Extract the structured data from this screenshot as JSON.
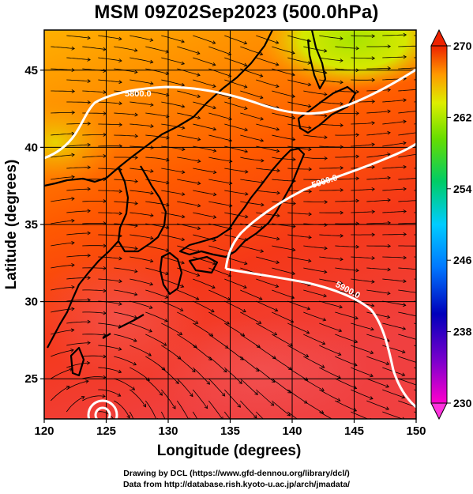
{
  "title": "MSM 09Z02Sep2023 (500.0hPa)",
  "xlabel": "Longitude (degrees)",
  "ylabel": "Latitude  (degrees)",
  "x_ticks": [
    "120",
    "125",
    "130",
    "135",
    "140",
    "145",
    "150"
  ],
  "y_ticks": [
    "25",
    "30",
    "35",
    "40",
    "45"
  ],
  "colorbar_ticks": [
    "270",
    "262",
    "254",
    "246",
    "238",
    "230"
  ],
  "contour_labels": [
    "5800.0",
    "5900.0",
    "5900.0"
  ],
  "credits": {
    "line1": "Drawing by DCL (https://www.gfd-dennou.org/library/dcl/)",
    "line2": "Data from http://database.rish.kyoto-u.ac.jp/arch/jmadata/"
  },
  "chart_data": {
    "type": "heatmap",
    "variable": "temperature (K) with wind streamlines and height contours",
    "xlim": [
      120,
      150
    ],
    "ylim": [
      22.4,
      47.6
    ],
    "colorbar_range": [
      230,
      270
    ],
    "contours": [
      {
        "label": "5800.0",
        "lon": [
          120,
          122,
          124,
          126,
          128,
          130,
          133,
          136,
          139,
          142,
          145,
          148,
          150
        ],
        "lat": [
          40.0,
          41.0,
          41.4,
          42.6,
          44.0,
          44.2,
          44.2,
          44.0,
          43.2,
          43.5,
          44.5,
          45.5,
          46.0
        ]
      },
      {
        "label": "5900.0",
        "lon": [
          135.0,
          135.8,
          137.5,
          140,
          142,
          144,
          146,
          148,
          150
        ],
        "lat": [
          32.8,
          33.8,
          35.3,
          36.8,
          38.0,
          38.6,
          39.2,
          40.0,
          40.6
        ]
      },
      {
        "label": "5900.0",
        "lon": [
          135.0,
          137,
          139,
          141,
          143,
          145,
          146.5,
          147.5,
          149,
          150
        ],
        "lat": [
          32.8,
          32.4,
          31.8,
          31.0,
          30.8,
          30.0,
          28.5,
          26.5,
          24.5,
          23.5
        ]
      }
    ],
    "cyclone_center": {
      "lon": 125.4,
      "lat": 22.9
    }
  }
}
